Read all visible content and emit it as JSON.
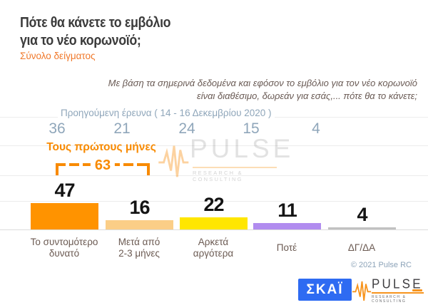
{
  "header": {
    "line1": "Πότε θα κάνετε το εμβόλιο",
    "line2": "για το νέο κορωνοϊό;",
    "sample_label": "Σύνολο δείγματος"
  },
  "question": {
    "line1": "Με βάση τα σημερινά δεδομένα και εφόσον το εμβόλιο για τον νέο κορωνοϊό",
    "line2": "είναι διαθέσιμο, δωρεάν για εσάς,... πότε θα το κάνετε;"
  },
  "previous_survey": {
    "label": "Προηγούμενη έρευνα ( 14 - 16  Δεκεμβρίου  2020 )",
    "values": [
      36,
      21,
      24,
      15,
      4
    ]
  },
  "annotation": {
    "label": "Τους πρώτους μήνες",
    "value": 63
  },
  "chart_data": {
    "type": "bar",
    "title": "Πότε θα κάνετε το εμβόλιο για το νέο κορωνοϊό;",
    "subtitle": "Σύνολο δείγματος",
    "categories": [
      "Το συντομότερο δυνατό",
      "Μετά από 2-3 μήνες",
      "Αρκετά αργότερα",
      "Ποτέ",
      "ΔΓ/ΔΑ"
    ],
    "categories_lines": [
      [
        "Το συντομότερο",
        "δυνατό"
      ],
      [
        "Μετά από",
        "2-3 μήνες"
      ],
      [
        "Αρκετά",
        "αργότερα"
      ],
      [
        "Ποτέ"
      ],
      [
        "ΔΓ/ΔΑ"
      ]
    ],
    "values": [
      47,
      16,
      22,
      11,
      4
    ],
    "previous_values": [
      36,
      21,
      24,
      15,
      4
    ],
    "previous_label": "Προηγούμενη έρευνα ( 14 - 16  Δεκεμβρίου  2020 )",
    "colors": [
      "#FF9300",
      "#FBCE87",
      "#FFE600",
      "#B18CEF",
      "#C1C1C1"
    ],
    "annotation": {
      "label": "Τους πρώτους μήνες",
      "value": 63,
      "covers": [
        "Το συντομότερο δυνατό",
        "Μετά από 2-3 μήνες"
      ]
    },
    "xlabel": "",
    "ylabel": "",
    "ylim": [
      0,
      50
    ],
    "grid": true,
    "legend": false
  },
  "watermark": {
    "text": "PULSE",
    "tagline": "RESEARCH & CONSULTING"
  },
  "footer": {
    "copyright": "© 2021 Pulse RC",
    "skai": "ΣΚΑΪ",
    "pulse": "PULSE",
    "pulse_tagline": "RESEARCH & CONSULTING"
  },
  "colors": {
    "accent_orange": "#F88A00",
    "sample_orange": "#F0782A",
    "title_text": "#3B3B3B",
    "question_text": "#6A5B55",
    "previous_text": "#8FA6BA",
    "category_text": "#6B5A52",
    "copyright_text": "#8CA3B8",
    "skai_blue": "#2E6BF2",
    "pulse_orange": "#F7941D",
    "pulse_dark": "#414042"
  }
}
